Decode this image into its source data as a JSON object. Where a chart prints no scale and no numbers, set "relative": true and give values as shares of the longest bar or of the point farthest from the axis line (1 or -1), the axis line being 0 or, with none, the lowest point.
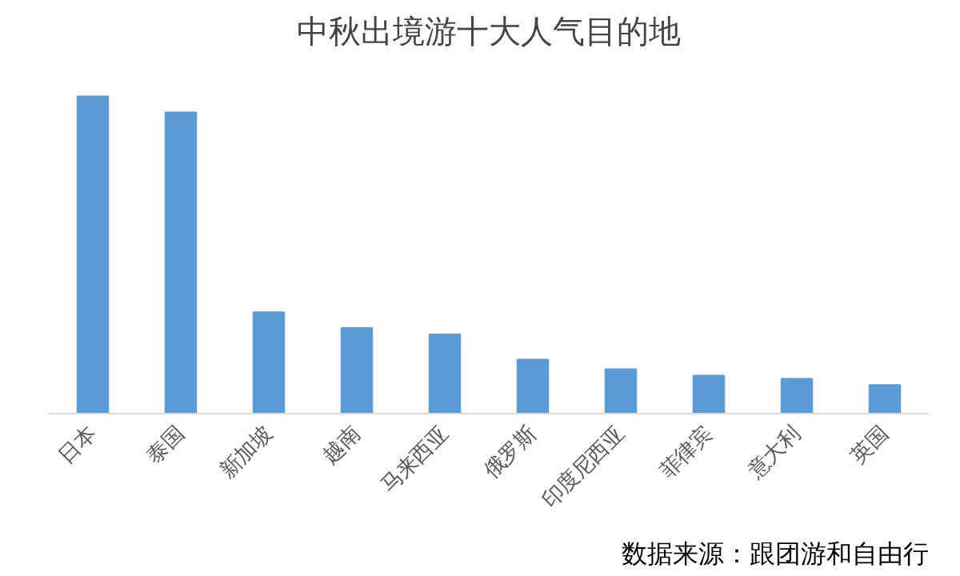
{
  "chart_data": {
    "type": "bar",
    "title": "中秋出境游十大人气目的地",
    "categories": [
      "日本",
      "泰国",
      "新加坡",
      "越南",
      "马来西亚",
      "俄罗斯",
      "印度尼西亚",
      "菲律宾",
      "意大利",
      "英国"
    ],
    "values": [
      1,
      0.95,
      0.32,
      0.27,
      0.25,
      0.17,
      0.14,
      0.12,
      0.11,
      0.09
    ],
    "color": "#5b9bd5",
    "relative": true,
    "grid": false,
    "annotations": [
      "数据来源：跟团游和自由行"
    ]
  }
}
